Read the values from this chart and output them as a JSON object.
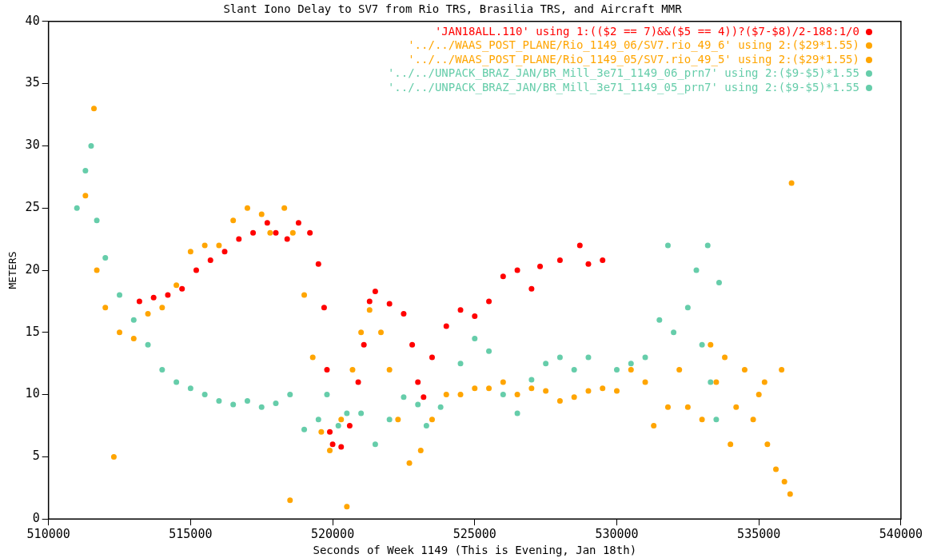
{
  "chart_data": {
    "type": "scatter",
    "title": "Slant Iono Delay to SV7 from Rio TRS, Brasilia TRS, and Aircraft MMR",
    "xlabel": "Seconds of Week 1149 (This is Evening, Jan 18th)",
    "ylabel": "METERS",
    "xlim": [
      510000,
      540000
    ],
    "xticks": [
      510000,
      515000,
      520000,
      525000,
      530000,
      535000,
      540000
    ],
    "ylim": [
      0,
      40
    ],
    "yticks": [
      0,
      5,
      10,
      15,
      20,
      25,
      30,
      35,
      40
    ],
    "grid": false,
    "legend": "top right",
    "marker": "circle",
    "series": [
      {
        "name": "'JAN18ALL.110' using 1:(($2 == 7)&&($5 == 4))?($7-$8)/2-188:1/0",
        "color": "#ff0000",
        "x": [
          513200,
          513700,
          514200,
          514700,
          515200,
          515700,
          516200,
          516700,
          517200,
          517700,
          518000,
          518400,
          518800,
          519200,
          519500,
          519700,
          519800,
          519900,
          520000,
          520300,
          520600,
          520900,
          521100,
          521300,
          521500,
          522000,
          522500,
          522800,
          523000,
          523200,
          523500,
          524000,
          524500,
          525000,
          525500,
          526000,
          526500,
          527000,
          527300,
          528000,
          528700,
          529000,
          529500
        ],
        "values": [
          17.5,
          17.8,
          18,
          18.5,
          20,
          20.8,
          21.5,
          22.5,
          23,
          23.8,
          23,
          22.5,
          23.8,
          23,
          20.5,
          17,
          12,
          7,
          6,
          5.8,
          7.5,
          11,
          14,
          17.5,
          18.3,
          17.3,
          16.5,
          14,
          11,
          9.8,
          13,
          15.5,
          16.8,
          16.3,
          17.5,
          19.5,
          20,
          18.5,
          20.3,
          20.8,
          22,
          20.5,
          20.8
        ]
      },
      {
        "name": "'../../WAAS_POST_PLANE/Rio_1149_06/SV7.rio_49_6' using 2:($29*1.55)",
        "color": "#ffa500",
        "x": [
          511300,
          511600,
          511700,
          512000,
          512500,
          513000,
          513500,
          514000,
          514500,
          515000,
          515500,
          516000,
          516500,
          517000,
          517500,
          517800,
          518300,
          518600,
          519000,
          519300,
          519600,
          519900,
          520300,
          520700,
          521000,
          521300,
          521700,
          522000,
          522300,
          522700,
          523100,
          523500,
          524000,
          524500,
          525000,
          525500,
          526000,
          526500,
          527000,
          527500,
          528000,
          528500,
          529000,
          529500,
          530000,
          518500,
          520500,
          512300
        ],
        "values": [
          26,
          33,
          20,
          17,
          15,
          14.5,
          16.5,
          17,
          18.8,
          21.5,
          22,
          22,
          24,
          25,
          24.5,
          23,
          25,
          23,
          18,
          13,
          7,
          5.5,
          8,
          12,
          15,
          16.8,
          15,
          12,
          8,
          4.5,
          5.5,
          8,
          10,
          10,
          10.5,
          10.5,
          11,
          10,
          10.5,
          10.3,
          9.5,
          9.8,
          10.3,
          10.5,
          10.3,
          1.5,
          1,
          5
        ]
      },
      {
        "name": "'../../WAAS_POST_PLANE/Rio_1149_05/SV7.rio_49_5' using 2:($29*1.55)",
        "color": "#ffa500",
        "x": [
          530500,
          531000,
          531300,
          531800,
          532200,
          532500,
          533000,
          533300,
          533500,
          533800,
          534000,
          534200,
          534500,
          534800,
          535000,
          535200,
          535300,
          535600,
          535800,
          535900,
          536100,
          536150
        ],
        "values": [
          12,
          11,
          7.5,
          9,
          12,
          9,
          8,
          14,
          11,
          13,
          6,
          9,
          12,
          8,
          10,
          11,
          6,
          4,
          12,
          3,
          2,
          27
        ]
      },
      {
        "name": "'../../UNPACK_BRAZ_JAN/BR_Mill_3e71_1149_06_prn7' using 2:($9-$5)*1.55",
        "color": "#66cdaa",
        "x": [
          511000,
          511300,
          511500,
          511700,
          512000,
          512500,
          513000,
          513500,
          514000,
          514500,
          515000,
          515500,
          516000,
          516500,
          517000,
          517500,
          518000,
          518500,
          519000,
          519500,
          519800,
          520200,
          520500,
          521000,
          521500,
          522000,
          522500,
          523000,
          523300,
          523800,
          524500,
          525000,
          525500,
          526000,
          526500,
          527000,
          527500,
          528000,
          528500,
          529000,
          530000,
          530500
        ],
        "values": [
          25,
          28,
          30,
          24,
          21,
          18,
          16,
          14,
          12,
          11,
          10.5,
          10,
          9.5,
          9.2,
          9.5,
          9,
          9.3,
          10,
          7.2,
          8,
          10,
          7.5,
          8.5,
          8.5,
          6,
          8,
          9.8,
          9.2,
          7.5,
          9,
          12.5,
          14.5,
          13.5,
          10,
          8.5,
          11.2,
          12.5,
          13,
          12,
          13,
          12,
          12.5
        ]
      },
      {
        "name": "'../../UNPACK_BRAZ_JAN/BR_Mill_3e71_1149_05_prn7' using 2:($9-$5)*1.55",
        "color": "#66cdaa",
        "x": [
          531000,
          531500,
          531800,
          532000,
          532500,
          532800,
          533000,
          533200,
          533300,
          533500,
          533600
        ],
        "values": [
          13,
          16,
          22,
          15,
          17,
          20,
          14,
          22,
          11,
          8,
          19
        ]
      }
    ]
  }
}
